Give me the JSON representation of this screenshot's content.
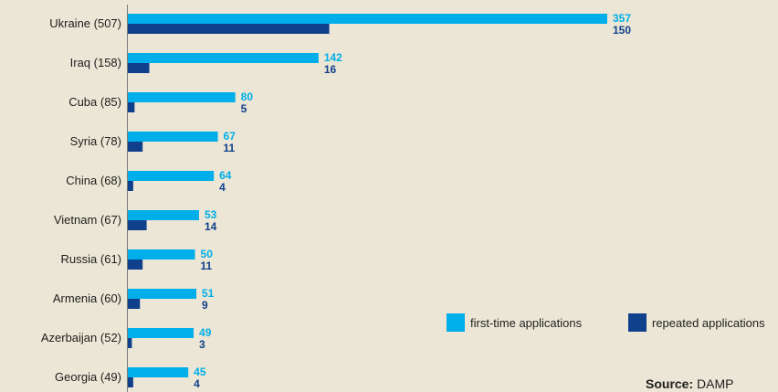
{
  "chart_data": {
    "type": "bar",
    "orientation": "horizontal",
    "categories": [
      "Ukraine (507)",
      "Iraq (158)",
      "Cuba (85)",
      "Syria (78)",
      "China (68)",
      "Vietnam (67)",
      "Russia (61)",
      "Armenia (60)",
      "Azerbaijan (52)",
      "Georgia (49)"
    ],
    "series": [
      {
        "name": "first-time applications",
        "color": "#00aee9",
        "values": [
          357,
          142,
          80,
          67,
          64,
          53,
          50,
          51,
          49,
          45
        ]
      },
      {
        "name": "repeated applications",
        "color": "#103f8c",
        "values": [
          150,
          16,
          5,
          11,
          4,
          14,
          11,
          9,
          3,
          4
        ]
      }
    ],
    "legend_position": "bottom-right",
    "grid": false
  },
  "source": {
    "label": "Source:",
    "text": "DAMP"
  }
}
